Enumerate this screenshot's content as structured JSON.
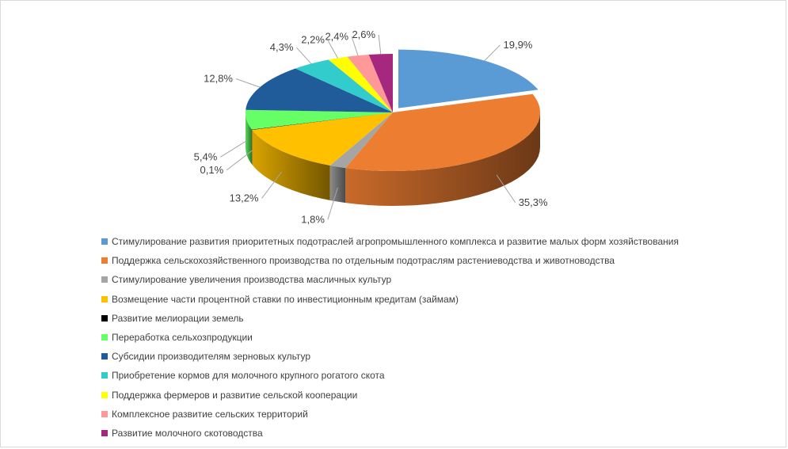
{
  "chart_data": {
    "type": "pie",
    "title": "",
    "style": "3d-exploded-first-slice",
    "legend_position": "bottom-left",
    "slices": [
      {
        "label": "Стимулирование развития приоритетных подотраслей агропромышленного комплекса и развитие малых форм хозяйствования",
        "value": 19.9,
        "display": "19,9%",
        "color": "#5B9BD5"
      },
      {
        "label": "Поддержка  сельскохозяйственного производства по отдельным подотраслям растениеводства  и животноводства",
        "value": 35.3,
        "display": "35,3%",
        "color": "#ED7D31"
      },
      {
        "label": "Стимулирование увеличения  производства масличных культур",
        "value": 1.8,
        "display": "1,8%",
        "color": "#A5A5A5"
      },
      {
        "label": "Возмещение  части процентной ставки по инвестиционным  кредитам (займам)",
        "value": 13.2,
        "display": "13,2%",
        "color": "#FFC000"
      },
      {
        "label": "Развитие мелиорации земель",
        "value": 0.1,
        "display": "0,1%",
        "color": "#000000"
      },
      {
        "label": "Переработка  сельхозпродукции",
        "value": 5.4,
        "display": "5,4%",
        "color": "#66FF66"
      },
      {
        "label": "Субсидии производителям  зерновых культур",
        "value": 12.8,
        "display": "12,8%",
        "color": "#1F5C99"
      },
      {
        "label": "Приобретение  кормов для молочного крупного рогатого скота",
        "value": 4.3,
        "display": "4,3%",
        "color": "#33CCCC"
      },
      {
        "label": "Поддержка  фермеров  и развитие сельской кооперации",
        "value": 2.2,
        "display": "2,2%",
        "color": "#FFFF00"
      },
      {
        "label": "Комплексное развитие сельских территорий",
        "value": 2.4,
        "display": "2,4%",
        "color": "#FF9999"
      },
      {
        "label": "Развитие молочного скотоводства",
        "value": 2.6,
        "display": "2,6%",
        "color": "#A5287E"
      }
    ]
  }
}
